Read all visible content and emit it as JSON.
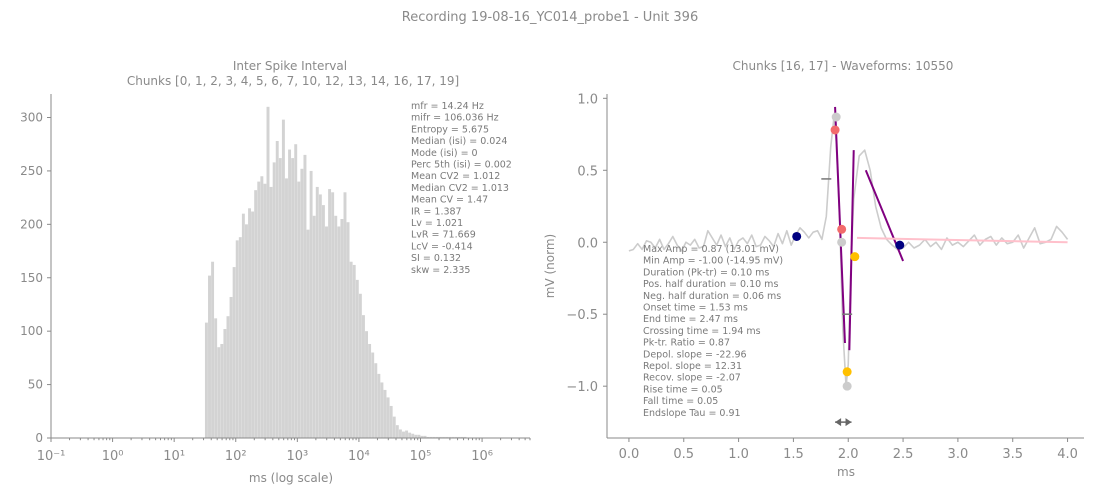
{
  "suptitle": "Recording 19-08-16_YC014_probe1 - Unit 396",
  "chart_data": [
    {
      "type": "bar",
      "title": "Inter Spike Interval",
      "subtitle": "Chunks [0, 1, 2, 3, 4, 5, 6, 7, 10, 12, 13, 14, 16, 17, 19]",
      "xlabel": "ms (log scale)",
      "ylabel": "",
      "xscale": "log",
      "xlim": [
        0.1,
        6000000
      ],
      "ylim": [
        0,
        322
      ],
      "xtick_labels": [
        "10⁻¹",
        "10⁰",
        "10¹",
        "10²",
        "10³",
        "10⁴",
        "10⁵",
        "10⁶"
      ],
      "yticks": [
        0,
        50,
        100,
        150,
        200,
        250,
        300
      ],
      "bar_color": "#d3d3d3",
      "bins": {
        "log10_start": 1.5,
        "log10_step": 0.05,
        "counts": [
          108,
          152,
          165,
          112,
          85,
          88,
          102,
          114,
          132,
          160,
          185,
          188,
          210,
          200,
          215,
          212,
          232,
          240,
          245,
          238,
          310,
          235,
          258,
          278,
          262,
          298,
          243,
          270,
          262,
          275,
          240,
          252,
          265,
          195,
          250,
          208,
          235,
          228,
          218,
          198,
          233,
          230,
          208,
          198,
          205,
          230,
          202,
          165,
          162,
          148,
          135,
          115,
          100,
          88,
          80,
          70,
          60,
          52,
          45,
          38,
          30,
          20,
          12,
          8,
          6,
          7,
          5,
          4,
          3,
          3,
          2,
          2,
          1,
          1,
          1,
          1,
          1,
          1,
          1,
          1,
          1,
          1,
          1,
          1,
          1
        ]
      },
      "stats": [
        "mfr = 14.24 Hz",
        "mifr = 106.036 Hz",
        "Entropy = 5.675",
        "Median (isi) = 0.024",
        "Mode (isi) = 0",
        "Perc 5th (isi) = 0.002",
        "Mean CV2 = 1.012",
        "Median CV2 = 1.013",
        "Mean CV = 1.47",
        "IR = 1.387",
        "Lv = 1.021",
        "LvR = 71.669",
        "LcV = -0.414",
        "SI = 0.132",
        "skw = 2.335"
      ]
    },
    {
      "type": "line",
      "title": "Chunks [16, 17] - Waveforms: 10550",
      "xlabel": "ms",
      "ylabel": "mV (norm)",
      "xlim": [
        -0.2,
        4.15
      ],
      "ylim": [
        -1.36,
        1.03
      ],
      "xticks": [
        0.0,
        0.5,
        1.0,
        1.5,
        2.0,
        2.5,
        3.0,
        3.5,
        4.0
      ],
      "xtick_labels": [
        "0.0",
        "0.5",
        "1.0",
        "1.5",
        "2.0",
        "2.5",
        "3.0",
        "3.5",
        "4.0"
      ],
      "yticks": [
        1.0,
        0.5,
        0.0,
        -0.5,
        -1.0
      ],
      "ytick_labels": [
        "1.0",
        "0.5",
        "0.0",
        "−0.5",
        "−1.0"
      ],
      "series": [
        {
          "color": "#cccccc",
          "x": [
            0.0,
            0.04,
            0.08,
            0.12,
            0.16,
            0.2,
            0.24,
            0.28,
            0.32,
            0.36,
            0.4,
            0.44,
            0.48,
            0.52,
            0.56,
            0.6,
            0.64,
            0.68,
            0.72,
            0.76,
            0.8,
            0.84,
            0.88,
            0.92,
            0.96,
            1.0,
            1.04,
            1.08,
            1.12,
            1.16,
            1.2,
            1.24,
            1.28,
            1.32,
            1.36,
            1.4,
            1.44,
            1.48,
            1.52,
            1.56,
            1.6,
            1.64,
            1.68,
            1.72,
            1.76,
            1.8,
            1.84,
            1.87,
            1.89,
            1.92,
            1.95,
            1.98,
            2.0,
            2.02,
            2.05,
            2.1,
            2.15,
            2.2,
            2.25,
            2.3,
            2.35,
            2.4,
            2.45,
            2.5,
            2.55,
            2.6,
            2.65,
            2.7,
            2.75,
            2.8,
            2.85,
            2.9,
            2.95,
            3.0,
            3.05,
            3.1,
            3.15,
            3.2,
            3.25,
            3.3,
            3.35,
            3.4,
            3.45,
            3.5,
            3.55,
            3.6,
            3.65,
            3.7,
            3.75,
            3.8,
            3.85,
            3.9,
            3.95,
            4.0
          ],
          "y": [
            -0.06,
            -0.05,
            -0.01,
            -0.05,
            0.01,
            0.0,
            -0.04,
            0.02,
            -0.05,
            -0.01,
            0.04,
            -0.02,
            -0.06,
            0.0,
            -0.02,
            0.02,
            -0.04,
            -0.03,
            0.08,
            0.03,
            -0.02,
            0.05,
            -0.03,
            0.03,
            -0.05,
            0.01,
            0.03,
            -0.01,
            0.05,
            -0.03,
            -0.02,
            0.04,
            0.01,
            -0.03,
            0.06,
            -0.01,
            0.08,
            -0.02,
            0.05,
            0.1,
            0.07,
            0.03,
            0.07,
            0.08,
            0.02,
            0.18,
            0.66,
            0.87,
            0.7,
            0.2,
            -0.6,
            -1.0,
            -0.85,
            -0.25,
            0.3,
            0.6,
            0.64,
            0.5,
            0.25,
            0.1,
            0.02,
            -0.02,
            -0.05,
            -0.04,
            0.0,
            -0.04,
            -0.02,
            0.02,
            -0.03,
            0.0,
            -0.05,
            0.03,
            -0.02,
            0.0,
            -0.03,
            0.01,
            0.05,
            -0.02,
            0.02,
            0.04,
            -0.02,
            0.03,
            -0.01,
            0.0,
            0.05,
            -0.04,
            0.03,
            0.1,
            -0.01,
            0.0,
            0.02,
            0.11,
            0.07,
            0.02
          ]
        },
        {
          "color": "#800080",
          "x": [
            1.88,
            1.97
          ],
          "y": [
            0.94,
            -0.7
          ]
        },
        {
          "color": "#800080",
          "x": [
            2.01,
            2.05
          ],
          "y": [
            -0.75,
            0.64
          ]
        },
        {
          "color": "#800080",
          "x": [
            2.16,
            2.5
          ],
          "y": [
            0.5,
            -0.13
          ]
        },
        {
          "color": "#ffc0cb",
          "x": [
            2.08,
            4.0
          ],
          "y": [
            0.03,
            0.0
          ]
        }
      ],
      "markers": [
        {
          "x": 1.53,
          "y": 0.04,
          "color": "#000080"
        },
        {
          "x": 2.47,
          "y": -0.02,
          "color": "#000080"
        },
        {
          "x": 1.88,
          "y": 0.78,
          "color": "#f26b6b"
        },
        {
          "x": 1.94,
          "y": 0.09,
          "color": "#f26b6b"
        },
        {
          "x": 1.89,
          "y": 0.87,
          "color": "#cccccc"
        },
        {
          "x": 1.94,
          "y": 0.0,
          "color": "#cccccc"
        },
        {
          "x": 1.99,
          "y": -1.0,
          "color": "#cccccc"
        },
        {
          "x": 2.06,
          "y": -0.1,
          "color": "#ffc000"
        },
        {
          "x": 1.99,
          "y": -0.9,
          "color": "#ffc000"
        }
      ],
      "ticks_markers": [
        {
          "x": 1.8,
          "y": 0.44
        },
        {
          "x": 1.99,
          "y": -0.5
        }
      ],
      "duration_arrow": {
        "x0": 1.88,
        "x1": 2.03,
        "y": -1.25
      },
      "stats": [
        "Max Amp = 0.87 (13.01 mV)",
        "Min Amp = -1.00 (-14.95 mV)",
        "Duration (Pk-tr) = 0.10 ms",
        "Pos. half duration = 0.10 ms",
        "Neg. half duration = 0.06 ms",
        "Onset time = 1.53 ms",
        "End time = 2.47 ms",
        "Crossing time = 1.94 ms",
        "Pk-tr. Ratio = 0.87",
        "Depol. slope = -22.96",
        "Repol. slope = 12.31",
        "Recov. slope = -2.07",
        "Rise time = 0.05",
        "Fall time = 0.05",
        "Endslope Tau = 0.91"
      ]
    }
  ]
}
